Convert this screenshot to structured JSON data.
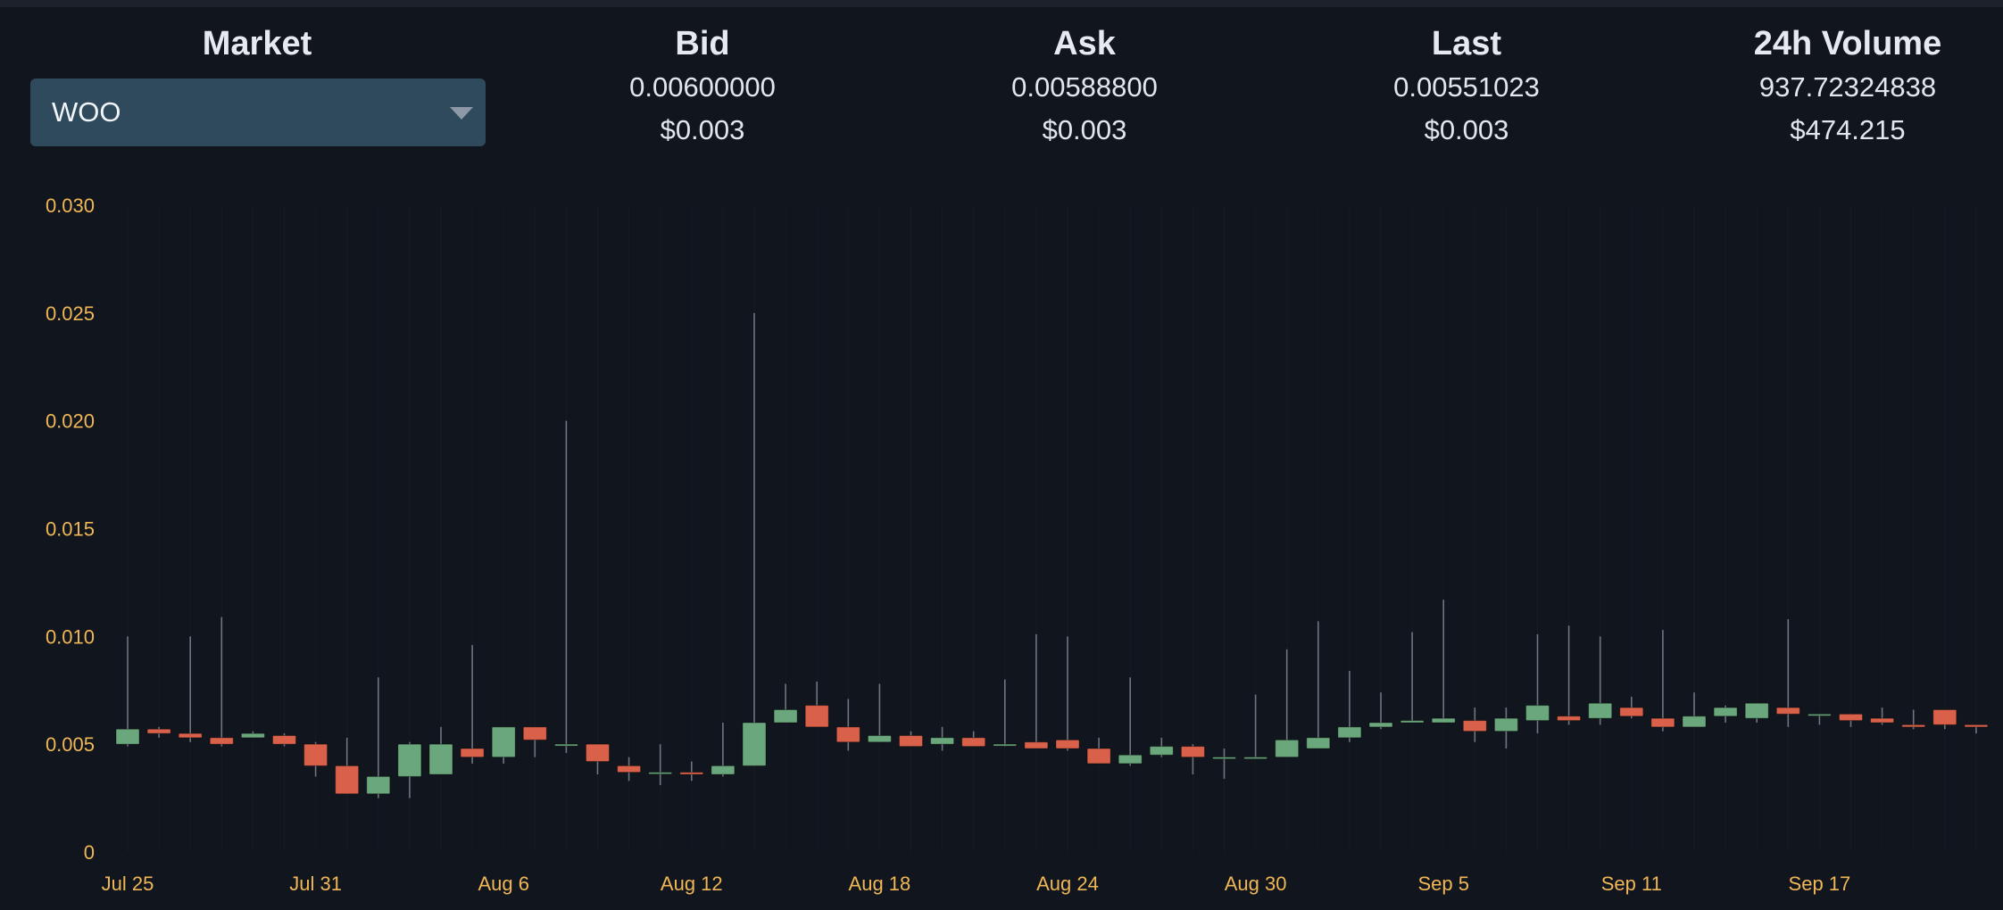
{
  "market": {
    "label": "Market",
    "selected": "WOO"
  },
  "bid": {
    "label": "Bid",
    "value": "0.00600000",
    "usd": "$0.003"
  },
  "ask": {
    "label": "Ask",
    "value": "0.00588800",
    "usd": "$0.003"
  },
  "last": {
    "label": "Last",
    "value": "0.00551023",
    "usd": "$0.003"
  },
  "volume": {
    "label": "24h Volume",
    "value": "937.72324838",
    "usd": "$474.215"
  },
  "colors": {
    "up": "#6ba77c",
    "down": "#d9614a",
    "wick": "#6f7680",
    "tick": "#f0b757"
  },
  "chart_data": {
    "type": "candlestick",
    "y_ticks": [
      "0",
      "0.005",
      "0.010",
      "0.015",
      "0.020",
      "0.025",
      "0.030"
    ],
    "ylim": [
      0,
      0.03
    ],
    "x_ticks": [
      {
        "label": "Jul 25",
        "index": 0
      },
      {
        "label": "Jul 31",
        "index": 6
      },
      {
        "label": "Aug 6",
        "index": 12
      },
      {
        "label": "Aug 12",
        "index": 18
      },
      {
        "label": "Aug 18",
        "index": 24
      },
      {
        "label": "Aug 24",
        "index": 30
      },
      {
        "label": "Aug 30",
        "index": 36
      },
      {
        "label": "Sep 5",
        "index": 42
      },
      {
        "label": "Sep 11",
        "index": 48
      },
      {
        "label": "Sep 17",
        "index": 54
      }
    ],
    "candles": [
      {
        "date": "Jul 25",
        "o": 0.005,
        "h": 0.01,
        "l": 0.0049,
        "c": 0.0057
      },
      {
        "date": "Jul 26",
        "o": 0.0057,
        "h": 0.0058,
        "l": 0.0053,
        "c": 0.0055
      },
      {
        "date": "Jul 27",
        "o": 0.0055,
        "h": 0.01,
        "l": 0.0051,
        "c": 0.0053
      },
      {
        "date": "Jul 28",
        "o": 0.0053,
        "h": 0.0109,
        "l": 0.0049,
        "c": 0.005
      },
      {
        "date": "Jul 29",
        "o": 0.0053,
        "h": 0.0056,
        "l": 0.0053,
        "c": 0.0055
      },
      {
        "date": "Jul 30",
        "o": 0.0054,
        "h": 0.0055,
        "l": 0.0049,
        "c": 0.005
      },
      {
        "date": "Jul 31",
        "o": 0.005,
        "h": 0.0051,
        "l": 0.0035,
        "c": 0.004
      },
      {
        "date": "Aug 1",
        "o": 0.004,
        "h": 0.0053,
        "l": 0.0027,
        "c": 0.0027
      },
      {
        "date": "Aug 2",
        "o": 0.0027,
        "h": 0.0081,
        "l": 0.0025,
        "c": 0.0035
      },
      {
        "date": "Aug 3",
        "o": 0.0035,
        "h": 0.0051,
        "l": 0.0025,
        "c": 0.005
      },
      {
        "date": "Aug 4",
        "o": 0.0036,
        "h": 0.0058,
        "l": 0.0036,
        "c": 0.005
      },
      {
        "date": "Aug 5",
        "o": 0.0048,
        "h": 0.0096,
        "l": 0.0041,
        "c": 0.0044
      },
      {
        "date": "Aug 6",
        "o": 0.0044,
        "h": 0.0058,
        "l": 0.0041,
        "c": 0.0058
      },
      {
        "date": "Aug 7",
        "o": 0.0058,
        "h": 0.0058,
        "l": 0.0044,
        "c": 0.0052
      },
      {
        "date": "Aug 8",
        "o": 0.005,
        "h": 0.02,
        "l": 0.0046,
        "c": 0.005
      },
      {
        "date": "Aug 9",
        "o": 0.005,
        "h": 0.005,
        "l": 0.0036,
        "c": 0.0042
      },
      {
        "date": "Aug 10",
        "o": 0.004,
        "h": 0.0044,
        "l": 0.0033,
        "c": 0.0037
      },
      {
        "date": "Aug 11",
        "o": 0.0037,
        "h": 0.005,
        "l": 0.0031,
        "c": 0.0037
      },
      {
        "date": "Aug 12",
        "o": 0.0037,
        "h": 0.0042,
        "l": 0.0033,
        "c": 0.0036
      },
      {
        "date": "Aug 13",
        "o": 0.0036,
        "h": 0.006,
        "l": 0.0035,
        "c": 0.004
      },
      {
        "date": "Aug 14",
        "o": 0.004,
        "h": 0.025,
        "l": 0.004,
        "c": 0.006
      },
      {
        "date": "Aug 15",
        "o": 0.006,
        "h": 0.0078,
        "l": 0.006,
        "c": 0.0066
      },
      {
        "date": "Aug 16",
        "o": 0.0068,
        "h": 0.0079,
        "l": 0.0058,
        "c": 0.0058
      },
      {
        "date": "Aug 17",
        "o": 0.0058,
        "h": 0.0071,
        "l": 0.0047,
        "c": 0.0051
      },
      {
        "date": "Aug 18",
        "o": 0.0051,
        "h": 0.0078,
        "l": 0.0051,
        "c": 0.0054
      },
      {
        "date": "Aug 19",
        "o": 0.0054,
        "h": 0.0056,
        "l": 0.0049,
        "c": 0.0049
      },
      {
        "date": "Aug 20",
        "o": 0.005,
        "h": 0.0058,
        "l": 0.0047,
        "c": 0.0053
      },
      {
        "date": "Aug 21",
        "o": 0.0053,
        "h": 0.0056,
        "l": 0.0049,
        "c": 0.0049
      },
      {
        "date": "Aug 22",
        "o": 0.005,
        "h": 0.008,
        "l": 0.0049,
        "c": 0.005
      },
      {
        "date": "Aug 23",
        "o": 0.0051,
        "h": 0.0101,
        "l": 0.0048,
        "c": 0.0048
      },
      {
        "date": "Aug 24",
        "o": 0.0052,
        "h": 0.01,
        "l": 0.0047,
        "c": 0.0048
      },
      {
        "date": "Aug 25",
        "o": 0.0048,
        "h": 0.0053,
        "l": 0.0041,
        "c": 0.0041
      },
      {
        "date": "Aug 26",
        "o": 0.0041,
        "h": 0.0081,
        "l": 0.004,
        "c": 0.0045
      },
      {
        "date": "Aug 27",
        "o": 0.0045,
        "h": 0.0053,
        "l": 0.0044,
        "c": 0.0049
      },
      {
        "date": "Aug 28",
        "o": 0.0049,
        "h": 0.005,
        "l": 0.0036,
        "c": 0.0044
      },
      {
        "date": "Aug 29",
        "o": 0.0044,
        "h": 0.0048,
        "l": 0.0034,
        "c": 0.0044
      },
      {
        "date": "Aug 30",
        "o": 0.0044,
        "h": 0.0073,
        "l": 0.0044,
        "c": 0.0044
      },
      {
        "date": "Aug 31",
        "o": 0.0044,
        "h": 0.0094,
        "l": 0.0044,
        "c": 0.0052
      },
      {
        "date": "Sep 1",
        "o": 0.0048,
        "h": 0.0107,
        "l": 0.0048,
        "c": 0.0053
      },
      {
        "date": "Sep 2",
        "o": 0.0053,
        "h": 0.0084,
        "l": 0.0051,
        "c": 0.0058
      },
      {
        "date": "Sep 3",
        "o": 0.0058,
        "h": 0.0074,
        "l": 0.0057,
        "c": 0.006
      },
      {
        "date": "Sep 4",
        "o": 0.006,
        "h": 0.0102,
        "l": 0.006,
        "c": 0.0061
      },
      {
        "date": "Sep 5",
        "o": 0.006,
        "h": 0.0117,
        "l": 0.006,
        "c": 0.0062
      },
      {
        "date": "Sep 6",
        "o": 0.0061,
        "h": 0.0067,
        "l": 0.0051,
        "c": 0.0056
      },
      {
        "date": "Sep 7",
        "o": 0.0056,
        "h": 0.0067,
        "l": 0.0048,
        "c": 0.0062
      },
      {
        "date": "Sep 8",
        "o": 0.0061,
        "h": 0.0101,
        "l": 0.0055,
        "c": 0.0068
      },
      {
        "date": "Sep 9",
        "o": 0.0063,
        "h": 0.0105,
        "l": 0.0059,
        "c": 0.0061
      },
      {
        "date": "Sep 10",
        "o": 0.0062,
        "h": 0.01,
        "l": 0.0059,
        "c": 0.0069
      },
      {
        "date": "Sep 11",
        "o": 0.0067,
        "h": 0.0072,
        "l": 0.0062,
        "c": 0.0063
      },
      {
        "date": "Sep 12",
        "o": 0.0062,
        "h": 0.0103,
        "l": 0.0056,
        "c": 0.0058
      },
      {
        "date": "Sep 13",
        "o": 0.0058,
        "h": 0.0074,
        "l": 0.0058,
        "c": 0.0063
      },
      {
        "date": "Sep 14",
        "o": 0.0063,
        "h": 0.0068,
        "l": 0.006,
        "c": 0.0067
      },
      {
        "date": "Sep 15",
        "o": 0.0062,
        "h": 0.0069,
        "l": 0.006,
        "c": 0.0069
      },
      {
        "date": "Sep 16",
        "o": 0.0067,
        "h": 0.0108,
        "l": 0.0058,
        "c": 0.0064
      },
      {
        "date": "Sep 17",
        "o": 0.0064,
        "h": 0.0064,
        "l": 0.0059,
        "c": 0.0064
      },
      {
        "date": "Sep 18",
        "o": 0.0064,
        "h": 0.0064,
        "l": 0.0058,
        "c": 0.0061
      },
      {
        "date": "Sep 19",
        "o": 0.0062,
        "h": 0.0067,
        "l": 0.0059,
        "c": 0.006
      },
      {
        "date": "Sep 20",
        "o": 0.0059,
        "h": 0.0066,
        "l": 0.0057,
        "c": 0.0058
      },
      {
        "date": "Sep 21",
        "o": 0.0066,
        "h": 0.0066,
        "l": 0.0057,
        "c": 0.0059
      },
      {
        "date": "Sep 22",
        "o": 0.0059,
        "h": 0.0059,
        "l": 0.0055,
        "c": 0.0058
      }
    ]
  }
}
